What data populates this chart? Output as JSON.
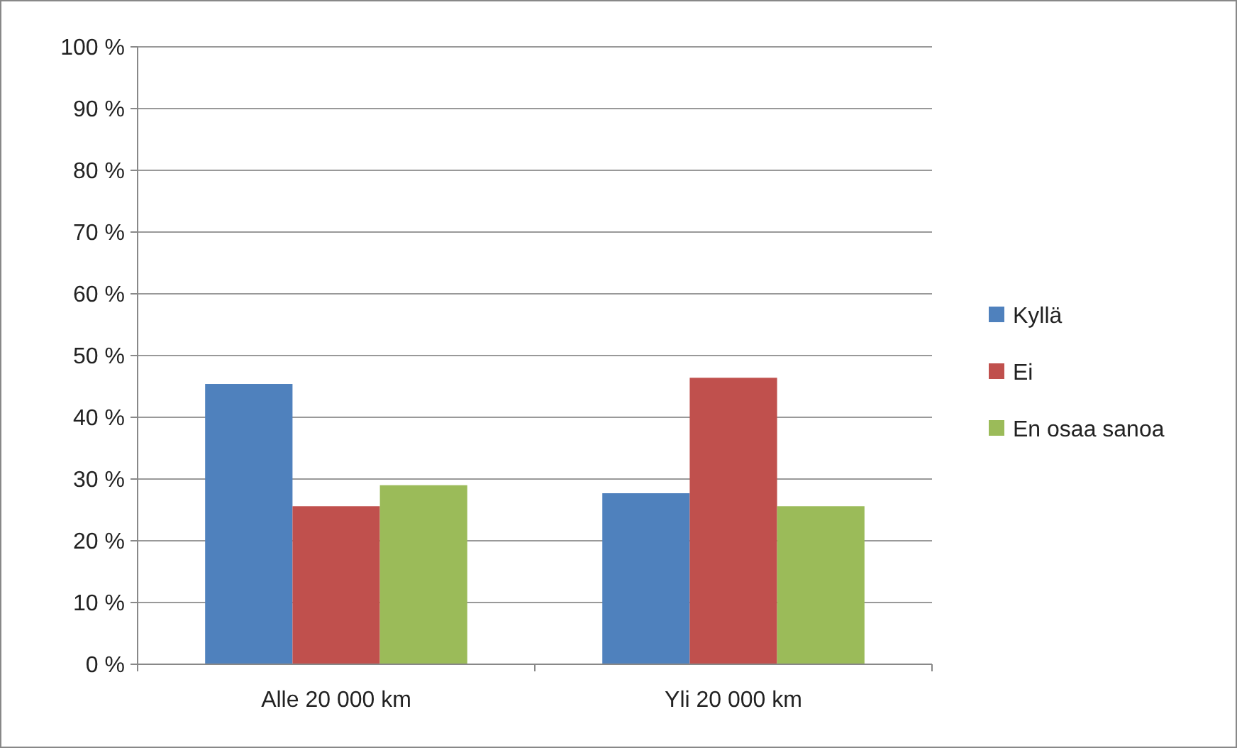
{
  "chart_data": {
    "type": "bar",
    "categories": [
      "Alle 20 000 km",
      "Yli 20 000 km"
    ],
    "series": [
      {
        "name": "Kyllä",
        "color": "#4f81bd",
        "values": [
          45.4,
          27.7
        ]
      },
      {
        "name": "Ei",
        "color": "#c0504d",
        "values": [
          25.6,
          46.4
        ]
      },
      {
        "name": "En osaa sanoa",
        "color": "#9bbb59",
        "values": [
          29.0,
          25.6
        ]
      }
    ],
    "ylim": [
      0,
      100
    ],
    "yticks": [
      {
        "value": 0,
        "label": "0 %"
      },
      {
        "value": 10,
        "label": "10 %"
      },
      {
        "value": 20,
        "label": "20 %"
      },
      {
        "value": 30,
        "label": "30 %"
      },
      {
        "value": 40,
        "label": "40 %"
      },
      {
        "value": 50,
        "label": "50 %"
      },
      {
        "value": 60,
        "label": "60 %"
      },
      {
        "value": 70,
        "label": "70 %"
      },
      {
        "value": 80,
        "label": "80 %"
      },
      {
        "value": 90,
        "label": "90 %"
      },
      {
        "value": 100,
        "label": "100 %"
      }
    ],
    "grid": "y",
    "legend": "right"
  }
}
